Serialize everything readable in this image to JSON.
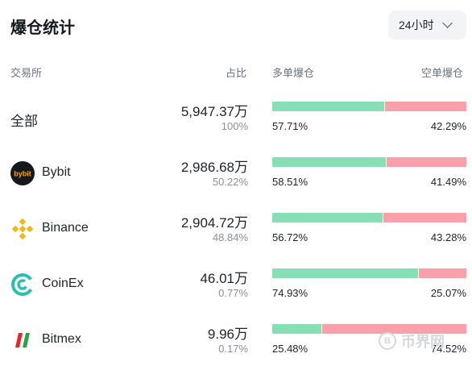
{
  "title": "爆仓统计",
  "period": {
    "label": "24小时"
  },
  "headers": {
    "exchange": "交易所",
    "ratio": "占比",
    "long": "多单爆仓",
    "short": "空单爆仓"
  },
  "rows": [
    {
      "name": "全部",
      "amount": "5,947.37万",
      "share": "100%",
      "long_pct": "57.71%",
      "short_pct": "42.29%",
      "long_fraction": 0.5771,
      "logo": "none"
    },
    {
      "name": "Bybit",
      "amount": "2,986.68万",
      "share": "50.22%",
      "long_pct": "58.51%",
      "short_pct": "41.49%",
      "long_fraction": 0.5851,
      "logo": "bybit-icon"
    },
    {
      "name": "Binance",
      "amount": "2,904.72万",
      "share": "48.84%",
      "long_pct": "56.72%",
      "short_pct": "43.28%",
      "long_fraction": 0.5672,
      "logo": "binance-icon"
    },
    {
      "name": "CoinEx",
      "amount": "46.01万",
      "share": "0.77%",
      "long_pct": "74.93%",
      "short_pct": "25.07%",
      "long_fraction": 0.7493,
      "logo": "coinex-icon"
    },
    {
      "name": "Bitmex",
      "amount": "9.96万",
      "share": "0.17%",
      "long_pct": "25.48%",
      "short_pct": "74.52%",
      "long_fraction": 0.2548,
      "logo": "bitmex-icon"
    }
  ],
  "colors": {
    "long": "#86dfb5",
    "short": "#f9a0aa"
  },
  "watermark": {
    "text": "币界网"
  }
}
